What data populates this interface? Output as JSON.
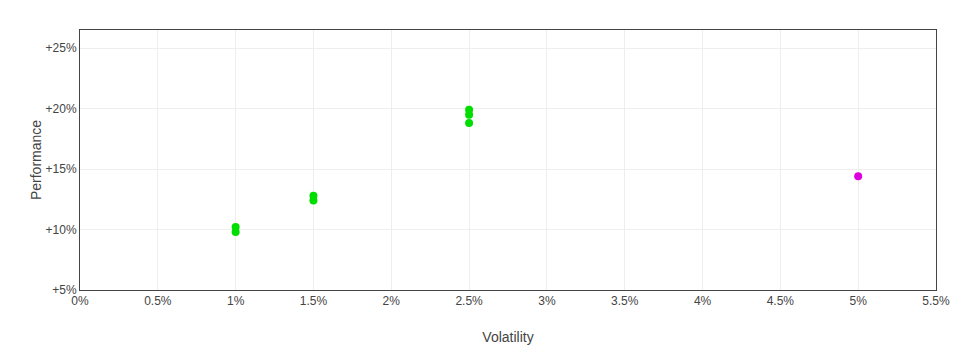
{
  "chart_data": {
    "type": "scatter",
    "xlabel": "Volatility",
    "ylabel": "Performance",
    "xlim": [
      0.0,
      0.055
    ],
    "ylim": [
      0.05,
      0.265
    ],
    "xticks": [
      {
        "value": 0.0,
        "label": "0%"
      },
      {
        "value": 0.005,
        "label": "0.5%"
      },
      {
        "value": 0.01,
        "label": "1%"
      },
      {
        "value": 0.015,
        "label": "1.5%"
      },
      {
        "value": 0.02,
        "label": "2%"
      },
      {
        "value": 0.025,
        "label": "2.5%"
      },
      {
        "value": 0.03,
        "label": "3%"
      },
      {
        "value": 0.035,
        "label": "3.5%"
      },
      {
        "value": 0.04,
        "label": "4%"
      },
      {
        "value": 0.045,
        "label": "4.5%"
      },
      {
        "value": 0.05,
        "label": "5%"
      },
      {
        "value": 0.055,
        "label": "5.5%"
      }
    ],
    "yticks": [
      {
        "value": 0.05,
        "label": "+5%"
      },
      {
        "value": 0.1,
        "label": "+10%"
      },
      {
        "value": 0.15,
        "label": "+15%"
      },
      {
        "value": 0.2,
        "label": "+20%"
      },
      {
        "value": 0.25,
        "label": "+25%"
      }
    ],
    "grid": true,
    "marker": "circle",
    "series": [
      {
        "color": "#00dd00",
        "x": [
          0.01,
          0.01,
          0.015,
          0.015,
          0.025,
          0.025,
          0.025
        ],
        "values": [
          0.102,
          0.098,
          0.128,
          0.124,
          0.199,
          0.195,
          0.188
        ]
      },
      {
        "color": "#dd00dd",
        "x": [
          0.05
        ],
        "values": [
          0.144
        ]
      }
    ]
  }
}
